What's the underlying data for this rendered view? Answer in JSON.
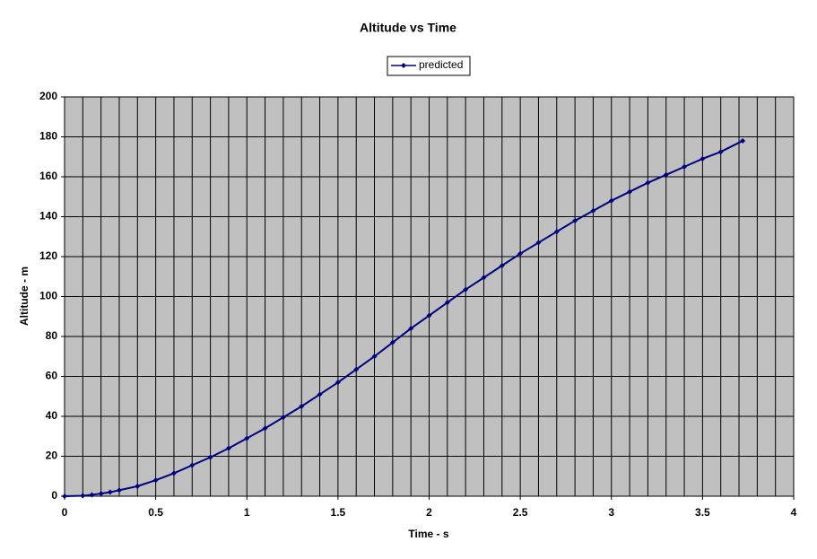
{
  "chart_data": {
    "type": "line",
    "title": "Altitude vs Time",
    "x_label": "Time - s",
    "y_label": "Altitude - m",
    "x": [
      0,
      0.1,
      0.15,
      0.2,
      0.25,
      0.3,
      0.4,
      0.5,
      0.6,
      0.7,
      0.8,
      0.9,
      1.0,
      1.1,
      1.2,
      1.3,
      1.4,
      1.5,
      1.6,
      1.7,
      1.8,
      1.9,
      2.0,
      2.1,
      2.2,
      2.3,
      2.4,
      2.5,
      2.6,
      2.7,
      2.8,
      2.9,
      3.0,
      3.1,
      3.2,
      3.3,
      3.4,
      3.5,
      3.6,
      3.72
    ],
    "series": [
      {
        "name": "predicted",
        "color": "#000080",
        "marker": "diamond",
        "values": [
          0,
          0.2,
          0.7,
          1.3,
          2,
          3,
          5,
          8,
          11.5,
          15.5,
          19.5,
          24,
          29,
          34,
          39.5,
          45,
          51,
          57,
          63.5,
          70,
          77,
          84,
          90.5,
          97,
          103.5,
          109.5,
          115.5,
          121.5,
          127,
          132.5,
          138,
          143,
          148,
          152.5,
          157,
          161,
          165,
          169,
          172.5,
          178
        ]
      }
    ],
    "xlim": [
      0,
      4
    ],
    "ylim": [
      0,
      200
    ],
    "xticks": [
      0,
      0.5,
      1,
      1.5,
      2,
      2.5,
      3,
      3.5,
      4
    ],
    "x_grid_lines": [
      0.1,
      0.2,
      0.3,
      0.4,
      0.5,
      0.6,
      0.7,
      0.8,
      0.9,
      1,
      1.1,
      1.2,
      1.3,
      1.4,
      1.5,
      1.6,
      1.7,
      1.8,
      1.9,
      2,
      2.1,
      2.2,
      2.3,
      2.4,
      2.5,
      2.6,
      2.7,
      2.8,
      2.9,
      3,
      3.1,
      3.2,
      3.3,
      3.4,
      3.5,
      3.6,
      3.7,
      3.8,
      3.9,
      4
    ],
    "yticks": [
      0,
      20,
      40,
      60,
      80,
      100,
      120,
      140,
      160,
      180,
      200
    ],
    "grid": true,
    "legend": "top"
  }
}
